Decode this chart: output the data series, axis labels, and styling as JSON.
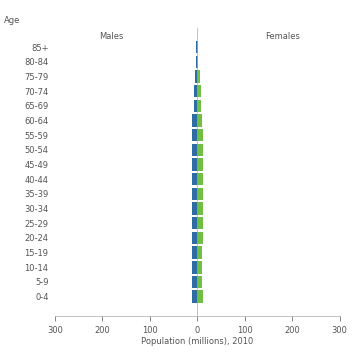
{
  "age_groups": [
    "0-4",
    "5-9",
    "10-14",
    "15-19",
    "20-24",
    "25-29",
    "30-34",
    "35-39",
    "40-44",
    "45-49",
    "50-54",
    "55-59",
    "60-64",
    "65-69",
    "70-74",
    "75-79",
    "80-84",
    "85+"
  ],
  "males": [
    10.5,
    10.5,
    10.5,
    10.0,
    11.0,
    11.0,
    11.0,
    11.0,
    11.0,
    11.0,
    11.0,
    11.0,
    10.0,
    7.0,
    6.5,
    4.0,
    2.0,
    1.5
  ],
  "females": [
    11.5,
    11.0,
    11.0,
    10.5,
    12.5,
    12.0,
    12.0,
    12.0,
    12.0,
    12.0,
    12.0,
    12.0,
    11.0,
    8.0,
    8.0,
    5.5,
    2.5,
    2.5
  ],
  "male_color": "#2e6da4",
  "female_color": "#70bf45",
  "xlim": 300,
  "xlabel": "Population (millions), 2010",
  "age_label": "Age",
  "males_label": "Males",
  "females_label": "Females",
  "bg_color": "#ffffff",
  "axis_color": "#aaaaaa",
  "tick_color": "#555555",
  "label_fontsize": 6,
  "bar_height": 0.85
}
